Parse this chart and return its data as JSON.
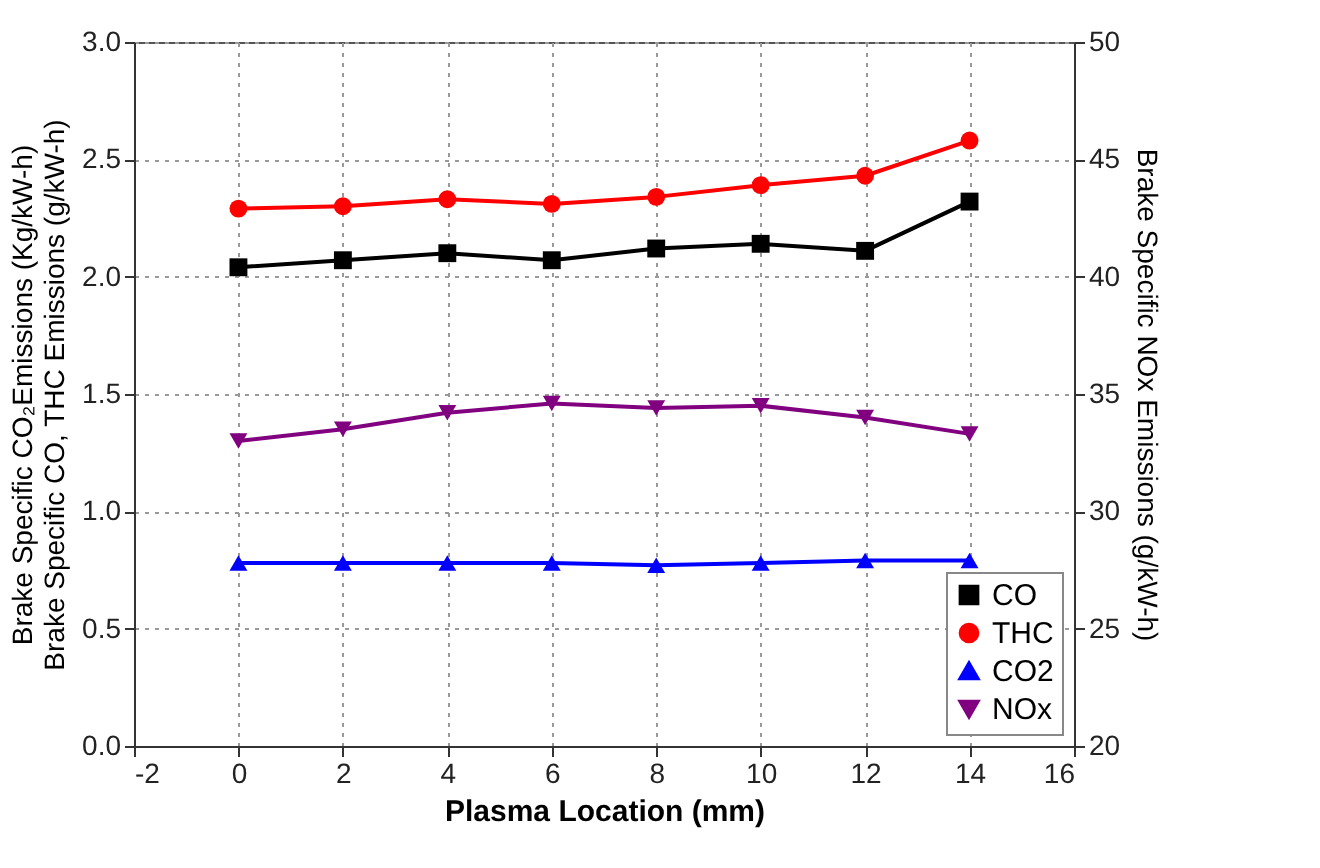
{
  "chart_data": {
    "type": "line",
    "xlabel": "Plasma Location (mm)",
    "ylabel": "Brake Specific CO, THC Emissions (g/kW-h)",
    "y2label": "Brake Specific NOx Emissions (g/kW-h)",
    "annotations": [
      "Brake Specific CO₂Emissions (Kg/kW-h)"
    ],
    "x": [
      0,
      2,
      4,
      6,
      8,
      10,
      12,
      14
    ],
    "series": [
      {
        "name": "CO",
        "color": "#000000",
        "marker": "square",
        "values": [
          2.04,
          2.07,
          2.1,
          2.07,
          2.12,
          2.14,
          2.11,
          2.32
        ]
      },
      {
        "name": "THC",
        "color": "#ff0000",
        "marker": "circle",
        "values": [
          2.29,
          2.3,
          2.33,
          2.31,
          2.34,
          2.39,
          2.43,
          2.58
        ]
      },
      {
        "name": "CO2",
        "color": "#0000ff",
        "marker": "triangle",
        "values": [
          0.78,
          0.78,
          0.78,
          0.78,
          0.77,
          0.78,
          0.79,
          0.79
        ]
      },
      {
        "name": "NOx",
        "color": "#800080",
        "marker": "triangle-down",
        "axis": "y2",
        "values": [
          33.0,
          33.5,
          34.2,
          34.6,
          34.4,
          34.5,
          34.0,
          33.3
        ]
      }
    ],
    "xlim": [
      -2,
      16
    ],
    "xticks": [
      -2,
      0,
      2,
      4,
      6,
      8,
      10,
      12,
      14,
      16
    ],
    "ylim": [
      0,
      3
    ],
    "yticks": [
      {
        "value": 0,
        "label": "0.0"
      },
      0.5,
      {
        "value": 1,
        "label": "1.0"
      },
      1.5,
      {
        "value": 2,
        "label": "2.0"
      },
      2.5,
      {
        "value": 3,
        "label": "3.0"
      }
    ],
    "y2lim": [
      20,
      50
    ],
    "y2ticks": [
      20,
      25,
      30,
      35,
      40,
      45,
      50
    ],
    "grid": true,
    "legend": "bottom right"
  }
}
